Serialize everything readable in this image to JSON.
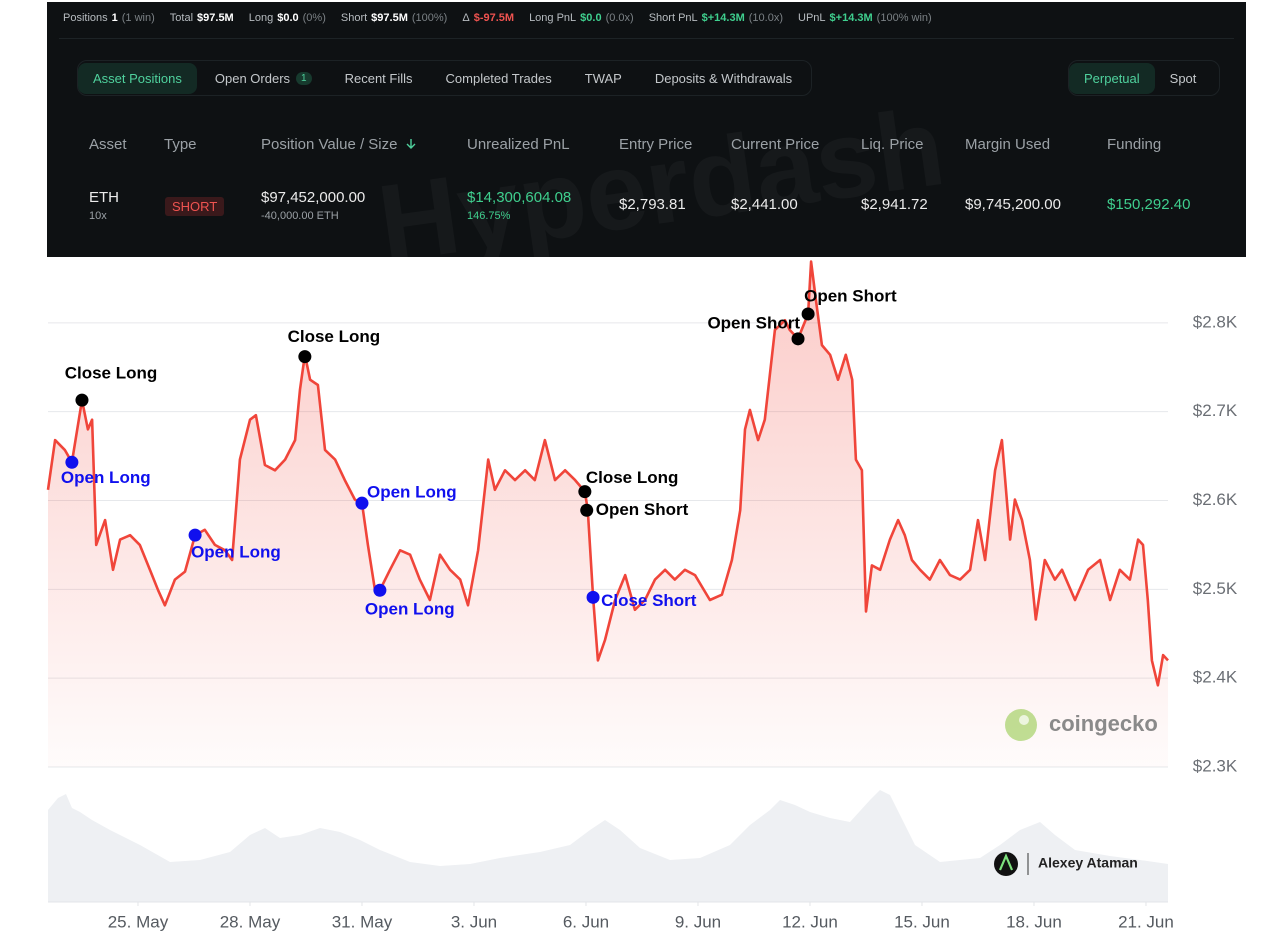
{
  "stats": [
    {
      "label": "Positions",
      "value": "1",
      "note": "(1 win)",
      "color": "#ffffff"
    },
    {
      "label": "Total",
      "value": "$97.5M",
      "color": "#ffffff"
    },
    {
      "label": "Long",
      "value": "$0.0",
      "note": "(0%)",
      "color": "#ffffff"
    },
    {
      "label": "Short",
      "value": "$97.5M",
      "note": "(100%)",
      "color": "#ffffff"
    },
    {
      "label": "Δ",
      "value": "$-97.5M",
      "color": "#ef5350"
    },
    {
      "label": "Long PnL",
      "value": "$0.0",
      "note": "(0.0x)",
      "color": "#3fcf8e"
    },
    {
      "label": "Short PnL",
      "value": "$+14.3M",
      "note": "(10.0x)",
      "color": "#3fcf8e"
    },
    {
      "label": "UPnL",
      "value": "$+14.3M",
      "note": "(100% win)",
      "color": "#3fcf8e"
    }
  ],
  "tabs": [
    {
      "label": "Asset Positions",
      "active": true
    },
    {
      "label": "Open Orders",
      "count": "1"
    },
    {
      "label": "Recent Fills"
    },
    {
      "label": "Completed Trades"
    },
    {
      "label": "TWAP"
    },
    {
      "label": "Deposits & Withdrawals"
    }
  ],
  "toggle": [
    {
      "label": "Perpetual",
      "active": true
    },
    {
      "label": "Spot"
    }
  ],
  "watermark": "Hyperdash",
  "table": {
    "columns": [
      "Asset",
      "Type",
      "Position Value / Size",
      "Unrealized PnL",
      "Entry Price",
      "Current Price",
      "Liq. Price",
      "Margin Used",
      "Funding"
    ],
    "rows": [
      [
        {
          "text": "ETH",
          "sub": "10x"
        },
        {
          "text": "SHORT",
          "badge": true
        },
        {
          "text": "$97,452,000.00",
          "sub": "-40,000.00 ETH"
        },
        {
          "text": "$14,300,604.08",
          "sub": "146.75%",
          "color": "#3fcf8e"
        },
        {
          "text": "$2,793.81"
        },
        {
          "text": "$2,441.00"
        },
        {
          "text": "$2,941.72"
        },
        {
          "text": "$9,745,200.00"
        },
        {
          "text": "$150,292.40",
          "color": "#3fcf8e"
        }
      ]
    ]
  },
  "chart_data": {
    "type": "line",
    "color": "#f0453a",
    "x": [
      22.59,
      22.78,
      23.04,
      23.23,
      23.5,
      23.66,
      23.77,
      23.88,
      24.12,
      24.33,
      24.52,
      24.79,
      25.05,
      25.32,
      25.54,
      25.72,
      25.99,
      26.26,
      26.53,
      26.79,
      27.06,
      27.33,
      27.52,
      27.73,
      28.0,
      28.16,
      28.4,
      28.67,
      28.94,
      29.21,
      29.34,
      29.47,
      29.61,
      29.82,
      30.01,
      30.28,
      30.54,
      30.81,
      31.0,
      31.16,
      31.35,
      31.48,
      31.75,
      32.02,
      32.29,
      32.55,
      32.82,
      33.09,
      33.36,
      33.63,
      33.84,
      34.11,
      34.38,
      34.56,
      34.83,
      35.1,
      35.37,
      35.63,
      35.9,
      36.17,
      36.44,
      36.71,
      36.97,
      37.05,
      37.19,
      37.32,
      37.51,
      37.78,
      38.05,
      38.31,
      38.58,
      38.85,
      39.12,
      39.38,
      39.65,
      39.92,
      40.32,
      40.64,
      40.91,
      41.13,
      41.26,
      41.39,
      41.61,
      41.79,
      42.06,
      42.33,
      42.46,
      42.68,
      42.95,
      43.03,
      43.16,
      43.32,
      43.54,
      43.75,
      43.96,
      44.13,
      44.23,
      44.39,
      44.5,
      44.66,
      44.88,
      45.14,
      45.36,
      45.54,
      45.73,
      45.95,
      46.21,
      46.48,
      46.75,
      47.02,
      47.29,
      47.5,
      47.69,
      47.96,
      48.14,
      48.36,
      48.49,
      48.68,
      48.89,
      49.05,
      49.29,
      49.56,
      49.75,
      50.1,
      50.45,
      50.77,
      51.04,
      51.3,
      51.57,
      51.79,
      51.92,
      52.05,
      52.16,
      52.32,
      52.46,
      52.59
    ],
    "values": [
      2612,
      2668,
      2657,
      2643,
      2713,
      2680,
      2691,
      2550,
      2578,
      2522,
      2556,
      2561,
      2550,
      2522,
      2499,
      2482,
      2511,
      2520,
      2561,
      2567,
      2550,
      2544,
      2533,
      2646,
      2691,
      2696,
      2640,
      2634,
      2646,
      2668,
      2725,
      2764,
      2736,
      2730,
      2657,
      2646,
      2623,
      2601,
      2597,
      2550,
      2499,
      2499,
      2522,
      2544,
      2539,
      2511,
      2488,
      2539,
      2522,
      2511,
      2482,
      2544,
      2646,
      2612,
      2634,
      2623,
      2634,
      2623,
      2668,
      2623,
      2634,
      2623,
      2610,
      2589,
      2491,
      2420,
      2443,
      2488,
      2516,
      2477,
      2488,
      2511,
      2522,
      2511,
      2522,
      2516,
      2488,
      2494,
      2533,
      2589,
      2680,
      2702,
      2668,
      2691,
      2792,
      2803,
      2792,
      2782,
      2810,
      2869,
      2826,
      2775,
      2764,
      2736,
      2764,
      2736,
      2646,
      2634,
      2475,
      2527,
      2522,
      2556,
      2578,
      2561,
      2533,
      2522,
      2511,
      2533,
      2516,
      2511,
      2522,
      2578,
      2533,
      2634,
      2668,
      2556,
      2601,
      2578,
      2533,
      2466,
      2533,
      2511,
      2522,
      2488,
      2522,
      2533,
      2488,
      2522,
      2511,
      2556,
      2550,
      2488,
      2420,
      2392,
      2426,
      2420
    ],
    "xlim": [
      22.59,
      52.59
    ],
    "xticks": [
      {
        "value": 25,
        "label": "25. May"
      },
      {
        "value": 28,
        "label": "28. May"
      },
      {
        "value": 31,
        "label": "31. May"
      },
      {
        "value": 34,
        "label": "3. Jun"
      },
      {
        "value": 37,
        "label": "6. Jun"
      },
      {
        "value": 40,
        "label": "9. Jun"
      },
      {
        "value": 43,
        "label": "12. Jun"
      },
      {
        "value": 46,
        "label": "15. Jun"
      },
      {
        "value": 49,
        "label": "18. Jun"
      },
      {
        "value": 52,
        "label": "21. Jun"
      }
    ],
    "ylim": [
      2300,
      2873
    ],
    "yticks": [
      {
        "value": 2300,
        "label": "$2.3K"
      },
      {
        "value": 2400,
        "label": "$2.4K"
      },
      {
        "value": 2500,
        "label": "$2.5K"
      },
      {
        "value": 2600,
        "label": "$2.6K"
      },
      {
        "value": 2700,
        "label": "$2.7K"
      },
      {
        "value": 2800,
        "label": "$2.8K"
      }
    ],
    "grid": true,
    "annotations": [
      {
        "text": "Open Long",
        "x": 23.23,
        "y": 2643,
        "color": "#1010ee"
      },
      {
        "text": "Close Long",
        "x": 23.5,
        "y": 2713,
        "color": "#000000"
      },
      {
        "text": "Open Long",
        "x": 26.53,
        "y": 2561,
        "color": "#1010ee"
      },
      {
        "text": "Close Long",
        "x": 29.47,
        "y": 2762,
        "color": "#000000"
      },
      {
        "text": "Open Long",
        "x": 31.0,
        "y": 2597,
        "color": "#1010ee"
      },
      {
        "text": "Open Long",
        "x": 31.48,
        "y": 2499,
        "color": "#1010ee"
      },
      {
        "text": "Close Long",
        "x": 36.97,
        "y": 2610,
        "color": "#000000"
      },
      {
        "text": "Open Short",
        "x": 37.02,
        "y": 2589,
        "color": "#000000"
      },
      {
        "text": "Close Short",
        "x": 37.19,
        "y": 2491,
        "color": "#1010ee"
      },
      {
        "text": "Open Short",
        "x": 42.68,
        "y": 2782,
        "color": "#000000"
      },
      {
        "text": "Open Short",
        "x": 42.95,
        "y": 2810,
        "color": "#000000"
      }
    ],
    "source": "coingecko",
    "credit": "Alexey Ataman"
  }
}
